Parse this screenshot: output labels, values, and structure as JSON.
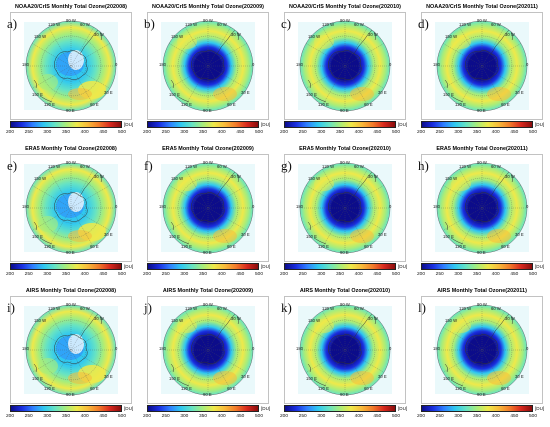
{
  "colors": {
    "colormap": [
      "#0c0c8a",
      "#1a2ee0",
      "#2f7fff",
      "#30c8f0",
      "#66e3c4",
      "#a8ed7a",
      "#efe94a",
      "#f8b93a",
      "#f27a2a",
      "#d8281e",
      "#8a0d0d"
    ],
    "map_border": "#999999",
    "coast": "#333333"
  },
  "colorbar": {
    "ticks": [
      "200",
      "250",
      "300",
      "350",
      "400",
      "450",
      "500"
    ],
    "unit": "[DU]"
  },
  "longitude_labels": [
    "90 W",
    "120 W",
    "60 W",
    "150 W",
    "30 W",
    "180",
    "0",
    "150 E",
    "30 E",
    "120 E",
    "60 E",
    "90 E"
  ],
  "panels": [
    {
      "label": "a)",
      "title": "NOAA20/CrIS Monthly Total Ozone(202008)",
      "style": "aug"
    },
    {
      "label": "b)",
      "title": "NOAA20/CrIS Monthly Total Ozone(202009)",
      "style": "hole"
    },
    {
      "label": "c)",
      "title": "NOAA20/CrIS Monthly Total Ozone(202010)",
      "style": "hole"
    },
    {
      "label": "d)",
      "title": "NOAA20/CrIS Monthly Total Ozone(202011)",
      "style": "hole"
    },
    {
      "label": "e)",
      "title": "ERA5 Monthly Total Ozone(202008)",
      "style": "aug"
    },
    {
      "label": "f)",
      "title": "ERA5 Monthly Total Ozone(202009)",
      "style": "hole"
    },
    {
      "label": "g)",
      "title": "ERA5 Monthly Total Ozone(202010)",
      "style": "hole"
    },
    {
      "label": "h)",
      "title": "ERA5 Monthly Total Ozone(202011)",
      "style": "hole"
    },
    {
      "label": "i)",
      "title": "AIRS Monthly Total Ozone(202008)",
      "style": "aug"
    },
    {
      "label": "j)",
      "title": "AIRS Monthly Total Ozone(202009)",
      "style": "hole"
    },
    {
      "label": "k)",
      "title": "AIRS Monthly Total Ozone(202010)",
      "style": "hole"
    },
    {
      "label": "l)",
      "title": "AIRS Monthly Total Ozone(202011)",
      "style": "hole"
    }
  ]
}
